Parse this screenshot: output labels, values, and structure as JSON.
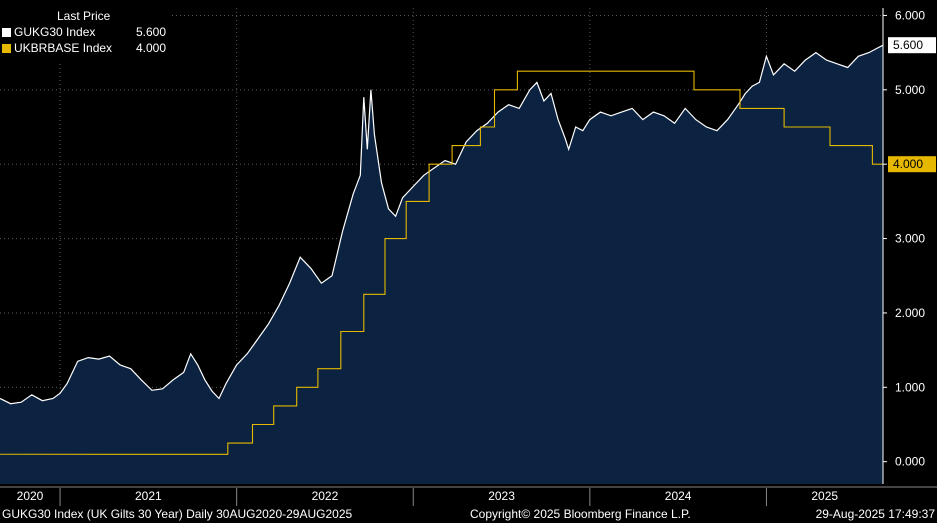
{
  "legend": {
    "title": "Last Price",
    "items": [
      {
        "name": "GUKG30 Index",
        "value": "5.600",
        "color": "#ffffff"
      },
      {
        "name": "UKBRBASE Index",
        "value": "4.000",
        "color": "#e6b800"
      }
    ]
  },
  "footer": {
    "left": "GUKG30 Index (UK Gilts 30 Year)  Daily 30AUG2020-29AUG2025",
    "center": "Copyright© 2025 Bloomberg Finance L.P.",
    "right": "29-Aug-2025 17:49:37"
  },
  "colors": {
    "background": "#000000",
    "area_fill": "#0b2341",
    "yield_line": "#ffffff",
    "base_rate_line": "#e6b800",
    "grid": "#5a5a5a"
  },
  "chart_data": {
    "type": "area",
    "xlabel": "",
    "ylabel": "",
    "xlim": [
      2020.66,
      2025.66
    ],
    "ylim": [
      -0.3,
      6.1
    ],
    "y_ticks": [
      "6.000",
      "5.000",
      "4.000",
      "3.000",
      "2.000",
      "1.000",
      "0.000"
    ],
    "x_ticks": [
      "2020",
      "2021",
      "2022",
      "2023",
      "2024",
      "2025"
    ],
    "grid": true,
    "legend_position": "top-left",
    "last_value_labels": [
      {
        "series": "GUKG30 Index",
        "value": "5.600"
      },
      {
        "series": "UKBRBASE Index",
        "value": "4.000"
      }
    ],
    "series": [
      {
        "name": "GUKG30 Index",
        "style": "area",
        "points": [
          [
            2020.66,
            0.85
          ],
          [
            2020.72,
            0.78
          ],
          [
            2020.78,
            0.8
          ],
          [
            2020.84,
            0.9
          ],
          [
            2020.9,
            0.82
          ],
          [
            2020.96,
            0.85
          ],
          [
            2021.0,
            0.92
          ],
          [
            2021.04,
            1.05
          ],
          [
            2021.1,
            1.35
          ],
          [
            2021.16,
            1.4
          ],
          [
            2021.22,
            1.38
          ],
          [
            2021.28,
            1.42
          ],
          [
            2021.34,
            1.3
          ],
          [
            2021.4,
            1.25
          ],
          [
            2021.46,
            1.1
          ],
          [
            2021.52,
            0.96
          ],
          [
            2021.58,
            0.98
          ],
          [
            2021.64,
            1.1
          ],
          [
            2021.7,
            1.2
          ],
          [
            2021.74,
            1.45
          ],
          [
            2021.78,
            1.3
          ],
          [
            2021.82,
            1.1
          ],
          [
            2021.86,
            0.95
          ],
          [
            2021.9,
            0.85
          ],
          [
            2021.94,
            1.05
          ],
          [
            2022.0,
            1.3
          ],
          [
            2022.06,
            1.45
          ],
          [
            2022.12,
            1.65
          ],
          [
            2022.18,
            1.85
          ],
          [
            2022.24,
            2.1
          ],
          [
            2022.3,
            2.4
          ],
          [
            2022.36,
            2.75
          ],
          [
            2022.42,
            2.6
          ],
          [
            2022.48,
            2.4
          ],
          [
            2022.54,
            2.5
          ],
          [
            2022.6,
            3.1
          ],
          [
            2022.66,
            3.6
          ],
          [
            2022.7,
            3.85
          ],
          [
            2022.72,
            4.9
          ],
          [
            2022.74,
            4.2
          ],
          [
            2022.76,
            5.0
          ],
          [
            2022.78,
            4.4
          ],
          [
            2022.82,
            3.75
          ],
          [
            2022.86,
            3.4
          ],
          [
            2022.9,
            3.3
          ],
          [
            2022.94,
            3.55
          ],
          [
            2023.0,
            3.7
          ],
          [
            2023.06,
            3.85
          ],
          [
            2023.12,
            3.95
          ],
          [
            2023.18,
            4.05
          ],
          [
            2023.24,
            4.0
          ],
          [
            2023.3,
            4.3
          ],
          [
            2023.36,
            4.45
          ],
          [
            2023.42,
            4.55
          ],
          [
            2023.48,
            4.7
          ],
          [
            2023.54,
            4.8
          ],
          [
            2023.6,
            4.75
          ],
          [
            2023.66,
            5.0
          ],
          [
            2023.7,
            5.1
          ],
          [
            2023.74,
            4.85
          ],
          [
            2023.78,
            4.95
          ],
          [
            2023.82,
            4.6
          ],
          [
            2023.86,
            4.35
          ],
          [
            2023.88,
            4.2
          ],
          [
            2023.92,
            4.5
          ],
          [
            2023.96,
            4.45
          ],
          [
            2024.0,
            4.6
          ],
          [
            2024.06,
            4.7
          ],
          [
            2024.12,
            4.65
          ],
          [
            2024.18,
            4.7
          ],
          [
            2024.24,
            4.75
          ],
          [
            2024.3,
            4.6
          ],
          [
            2024.36,
            4.7
          ],
          [
            2024.42,
            4.65
          ],
          [
            2024.48,
            4.55
          ],
          [
            2024.54,
            4.75
          ],
          [
            2024.6,
            4.6
          ],
          [
            2024.66,
            4.5
          ],
          [
            2024.72,
            4.45
          ],
          [
            2024.78,
            4.6
          ],
          [
            2024.84,
            4.8
          ],
          [
            2024.88,
            4.95
          ],
          [
            2024.92,
            5.05
          ],
          [
            2024.96,
            5.1
          ],
          [
            2025.0,
            5.45
          ],
          [
            2025.04,
            5.2
          ],
          [
            2025.1,
            5.35
          ],
          [
            2025.16,
            5.25
          ],
          [
            2025.22,
            5.4
          ],
          [
            2025.28,
            5.5
          ],
          [
            2025.34,
            5.4
          ],
          [
            2025.4,
            5.35
          ],
          [
            2025.46,
            5.3
          ],
          [
            2025.52,
            5.45
          ],
          [
            2025.58,
            5.5
          ],
          [
            2025.62,
            5.55
          ],
          [
            2025.66,
            5.6
          ]
        ]
      },
      {
        "name": "UKBRBASE Index",
        "style": "step",
        "points": [
          [
            2020.66,
            0.1
          ],
          [
            2021.95,
            0.25
          ],
          [
            2022.09,
            0.5
          ],
          [
            2022.21,
            0.75
          ],
          [
            2022.34,
            1.0
          ],
          [
            2022.46,
            1.25
          ],
          [
            2022.59,
            1.75
          ],
          [
            2022.72,
            2.25
          ],
          [
            2022.84,
            3.0
          ],
          [
            2022.96,
            3.5
          ],
          [
            2023.09,
            4.0
          ],
          [
            2023.22,
            4.25
          ],
          [
            2023.38,
            4.5
          ],
          [
            2023.46,
            5.0
          ],
          [
            2023.59,
            5.25
          ],
          [
            2024.59,
            5.0
          ],
          [
            2024.85,
            4.75
          ],
          [
            2025.1,
            4.5
          ],
          [
            2025.36,
            4.25
          ],
          [
            2025.6,
            4.0
          ],
          [
            2025.66,
            4.0
          ]
        ]
      }
    ]
  }
}
